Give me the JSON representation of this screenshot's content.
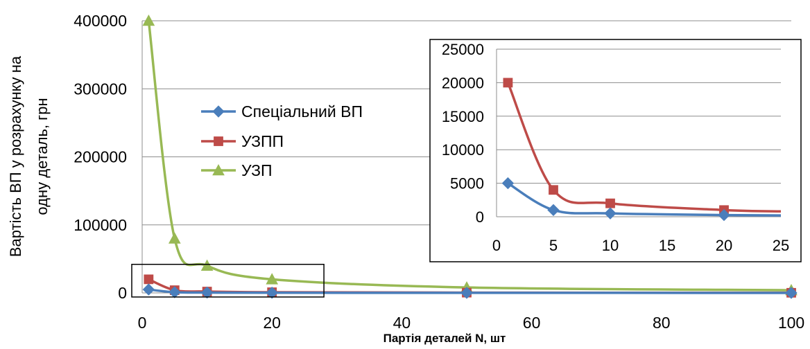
{
  "chart_data": [
    {
      "type": "line",
      "title": "",
      "xlabel": "Партія деталей N, шт",
      "ylabel_line1": "Вартість ВП у розрахунку на",
      "ylabel_line2": "одну деталь, грн",
      "xlim": [
        0,
        100
      ],
      "ylim": [
        0,
        400000
      ],
      "x_ticks": [
        0,
        20,
        40,
        60,
        80,
        100
      ],
      "y_ticks": [
        0,
        100000,
        200000,
        300000,
        400000
      ],
      "grid": "horizontal",
      "legend_position": "center-left",
      "series": [
        {
          "name": "Спеціальний ВП",
          "color": "#4a7ebb",
          "marker": "diamond",
          "x": [
            1,
            5,
            10,
            20,
            50,
            100
          ],
          "y": [
            5000,
            1000,
            500,
            250,
            100,
            50
          ]
        },
        {
          "name": "УЗПП",
          "color": "#be4b48",
          "marker": "square",
          "x": [
            1,
            5,
            10,
            20,
            50,
            100
          ],
          "y": [
            20000,
            4000,
            2000,
            1000,
            400,
            200
          ]
        },
        {
          "name": "УЗП",
          "color": "#98b954",
          "marker": "triangle",
          "x": [
            1,
            5,
            10,
            20,
            50,
            100
          ],
          "y": [
            400000,
            80000,
            40000,
            20000,
            8000,
            4000
          ]
        }
      ],
      "zoom_region": {
        "x": [
          0,
          28
        ],
        "y": [
          -6000,
          42000
        ]
      }
    },
    {
      "type": "line",
      "title": "",
      "xlabel": "",
      "ylabel": "",
      "xlim": [
        0,
        25
      ],
      "ylim": [
        0,
        25000
      ],
      "x_ticks": [
        0,
        5,
        10,
        15,
        20,
        25
      ],
      "y_ticks": [
        0,
        5000,
        10000,
        15000,
        20000,
        25000
      ],
      "grid": "horizontal",
      "series": [
        {
          "name": "Спеціальний ВП",
          "color": "#4a7ebb",
          "marker": "diamond",
          "x": [
            1,
            5,
            10,
            20,
            25
          ],
          "y": [
            5000,
            1000,
            500,
            250,
            200
          ]
        },
        {
          "name": "УЗПП",
          "color": "#be4b48",
          "marker": "square",
          "x": [
            1,
            5,
            10,
            20,
            25
          ],
          "y": [
            20000,
            4000,
            2000,
            1000,
            800
          ]
        }
      ]
    }
  ]
}
